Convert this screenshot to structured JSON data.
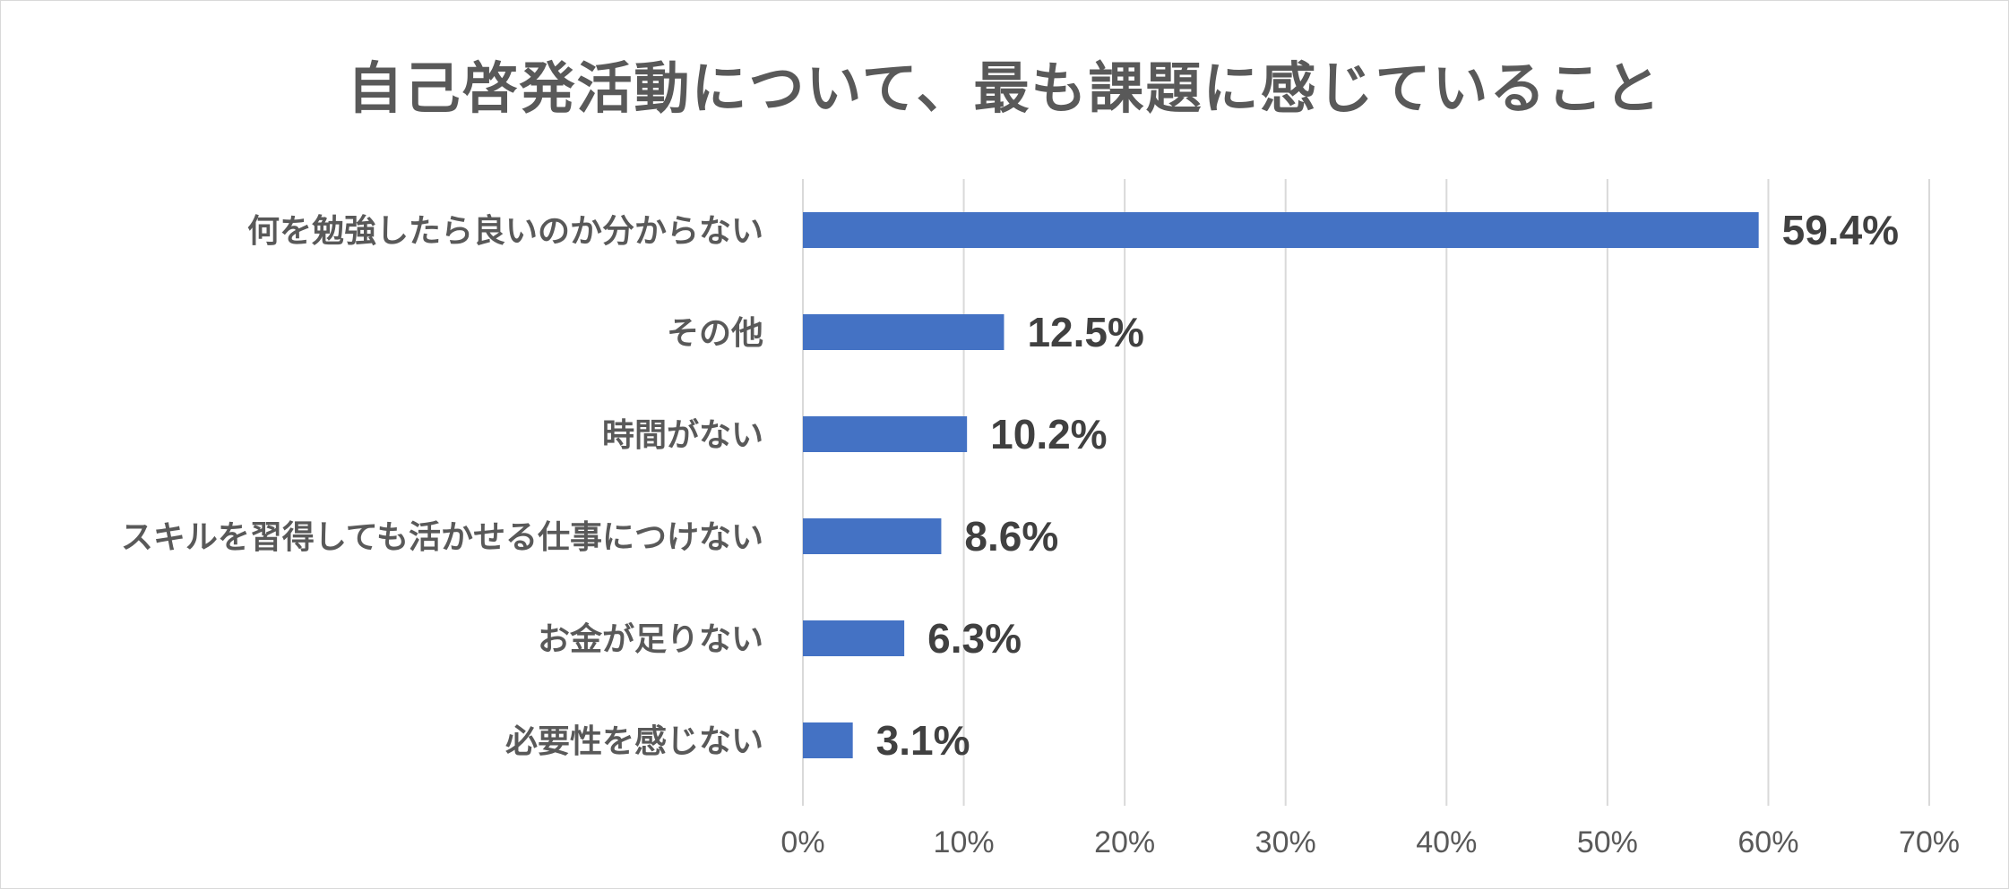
{
  "chart_data": {
    "type": "bar",
    "orientation": "horizontal",
    "title": "自己啓発活動について、最も課題に感じていること",
    "categories": [
      "何を勉強したら良いのか分からない",
      "その他",
      "時間がない",
      "スキルを習得しても活かせる仕事につけない",
      "お金が足りない",
      "必要性を感じない"
    ],
    "values": [
      59.4,
      12.5,
      10.2,
      8.6,
      6.3,
      3.1
    ],
    "value_labels": [
      "59.4%",
      "12.5%",
      "10.2%",
      "8.6%",
      "6.3%",
      "3.1%"
    ],
    "x_ticks": [
      0,
      10,
      20,
      30,
      40,
      50,
      60,
      70
    ],
    "x_tick_labels": [
      "0%",
      "10%",
      "20%",
      "30%",
      "40%",
      "50%",
      "60%",
      "70%"
    ],
    "xlim": [
      0,
      70
    ],
    "xlabel": "",
    "ylabel": "",
    "grid": "vertical",
    "legend": "none",
    "bar_color": "#4472c4",
    "grid_color": "#d9d9d9"
  }
}
